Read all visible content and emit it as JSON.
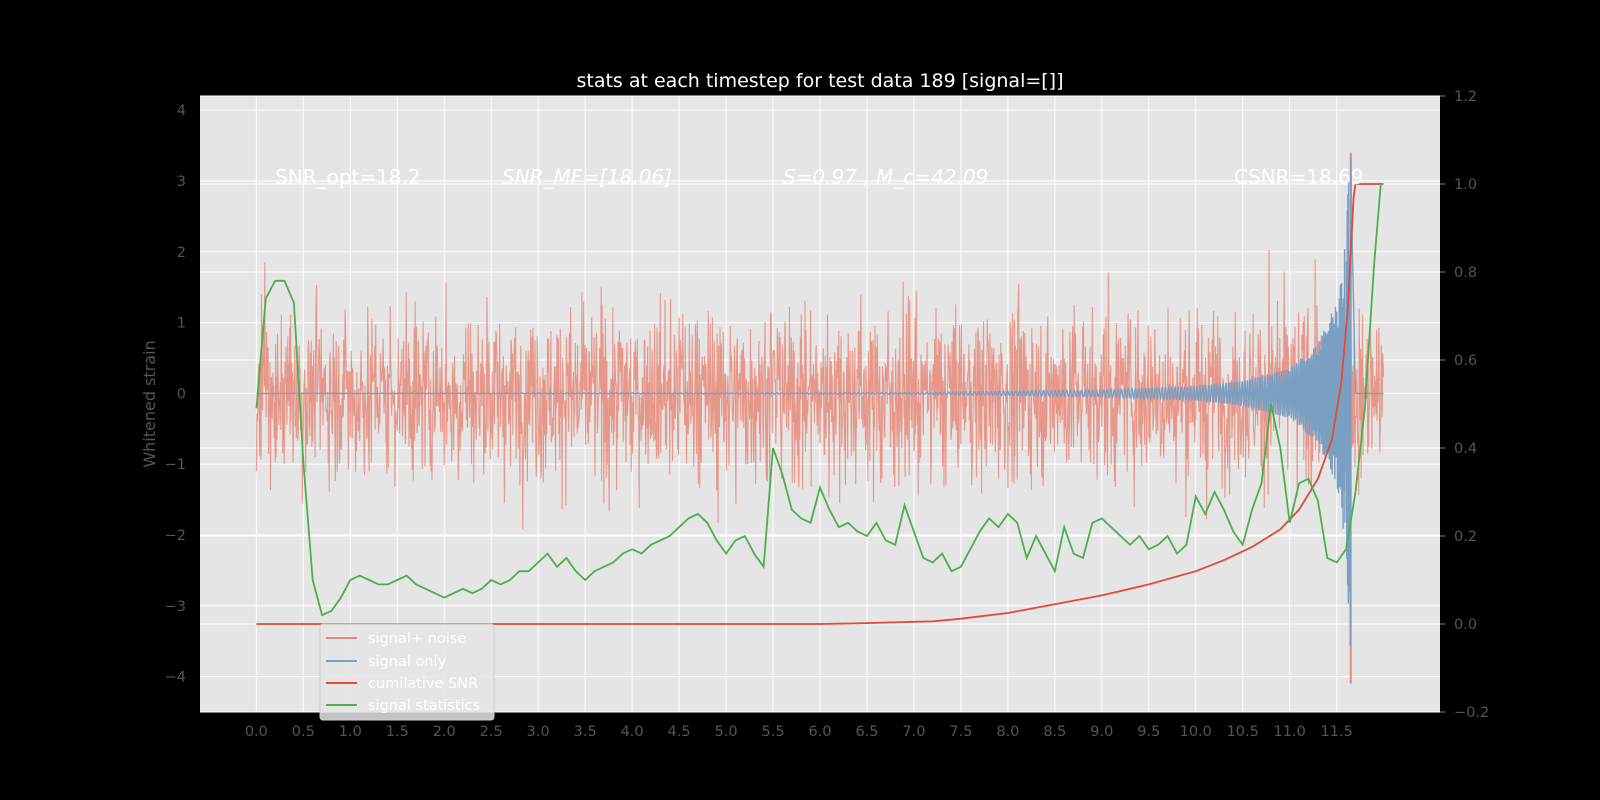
{
  "chart_data": {
    "type": "line",
    "title": "stats at each timestep for test data 189 [signal=[]]",
    "ylabel": "Whitened strain",
    "xlabel": "",
    "xlim": [
      -0.6,
      12.6
    ],
    "ylim_left": [
      -4.5,
      4.2
    ],
    "ylim_right": [
      -0.2,
      1.2
    ],
    "x_ticks": [
      "0.0",
      "0.5",
      "1.0",
      "1.5",
      "2.0",
      "2.5",
      "3.0",
      "3.5",
      "4.0",
      "4.5",
      "5.0",
      "5.5",
      "6.0",
      "6.5",
      "7.0",
      "7.5",
      "8.0",
      "8.5",
      "9.0",
      "9.5",
      "10.0",
      "10.5",
      "11.0",
      "11.5"
    ],
    "y_ticks_left": [
      "4",
      "3",
      "2",
      "1",
      "0",
      "−1",
      "−2",
      "−3",
      "−4"
    ],
    "y_ticks_right": [
      "1.2",
      "1.0",
      "0.8",
      "0.6",
      "0.4",
      "0.2",
      "0.0",
      "−0.2"
    ],
    "grid": true,
    "legend_position": "lower-left",
    "annotations": [
      "SNR_opt=18.2",
      "SNR_MF=[18.06]",
      "S=0.97 , M_c=42.09",
      "CSNR=18.69"
    ],
    "series": [
      {
        "name": "signal+ noise",
        "color": "#E8897A",
        "axis": "left",
        "description_range": [
          -2.5,
          2.5
        ],
        "x_range": [
          0.0,
          12.0
        ],
        "spike_x": 11.65,
        "spike_ymin": -4.1,
        "spike_ymax": 3.4
      },
      {
        "name": "signal only",
        "color": "#7B9FC2",
        "axis": "left",
        "x_range": [
          0.0,
          12.0
        ],
        "envelope": [
          [
            0,
            0.0
          ],
          [
            7,
            0.01
          ],
          [
            8,
            0.03
          ],
          [
            9,
            0.05
          ],
          [
            10,
            0.1
          ],
          [
            10.5,
            0.18
          ],
          [
            11,
            0.35
          ],
          [
            11.3,
            0.7
          ],
          [
            11.5,
            1.3
          ],
          [
            11.6,
            2.2
          ],
          [
            11.65,
            3.8
          ],
          [
            11.7,
            0.0
          ]
        ]
      },
      {
        "name": "cumilative SNR",
        "color": "#E24A33",
        "axis": "right",
        "x": [
          0.0,
          6.0,
          6.5,
          7.0,
          7.2,
          7.5,
          8.0,
          8.5,
          9.0,
          9.5,
          10.0,
          10.3,
          10.6,
          10.9,
          11.1,
          11.3,
          11.45,
          11.55,
          11.62,
          11.65,
          11.68,
          11.7,
          12.0
        ],
        "values": [
          0.0,
          0.0,
          0.002,
          0.005,
          0.006,
          0.012,
          0.025,
          0.045,
          0.065,
          0.09,
          0.12,
          0.145,
          0.175,
          0.215,
          0.26,
          0.33,
          0.42,
          0.55,
          0.72,
          0.85,
          0.97,
          1.0,
          1.0
        ]
      },
      {
        "name": "signal statistics",
        "color": "#4DAF4A",
        "axis": "right",
        "x": [
          0.0,
          0.1,
          0.2,
          0.3,
          0.4,
          0.5,
          0.6,
          0.7,
          0.8,
          0.9,
          1.0,
          1.1,
          1.2,
          1.3,
          1.4,
          1.5,
          1.6,
          1.7,
          1.8,
          1.9,
          2.0,
          2.1,
          2.2,
          2.3,
          2.4,
          2.5,
          2.6,
          2.7,
          2.8,
          2.9,
          3.0,
          3.1,
          3.2,
          3.3,
          3.4,
          3.5,
          3.6,
          3.7,
          3.8,
          3.9,
          4.0,
          4.1,
          4.2,
          4.3,
          4.4,
          4.5,
          4.6,
          4.7,
          4.8,
          4.9,
          5.0,
          5.1,
          5.2,
          5.3,
          5.4,
          5.5,
          5.6,
          5.7,
          5.8,
          5.9,
          6.0,
          6.1,
          6.2,
          6.3,
          6.4,
          6.5,
          6.6,
          6.7,
          6.8,
          6.9,
          7.0,
          7.1,
          7.2,
          7.3,
          7.4,
          7.5,
          7.6,
          7.7,
          7.8,
          7.9,
          8.0,
          8.1,
          8.2,
          8.3,
          8.4,
          8.5,
          8.6,
          8.7,
          8.8,
          8.9,
          9.0,
          9.1,
          9.2,
          9.3,
          9.4,
          9.5,
          9.6,
          9.7,
          9.8,
          9.9,
          10.0,
          10.1,
          10.2,
          10.3,
          10.4,
          10.5,
          10.6,
          10.7,
          10.8,
          10.9,
          11.0,
          11.1,
          11.2,
          11.3,
          11.4,
          11.5,
          11.6,
          11.7,
          11.8,
          11.9,
          12.0
        ],
        "values": [
          0.49,
          0.74,
          0.78,
          0.78,
          0.73,
          0.37,
          0.1,
          0.02,
          0.03,
          0.06,
          0.1,
          0.11,
          0.1,
          0.09,
          0.09,
          0.1,
          0.11,
          0.09,
          0.08,
          0.07,
          0.06,
          0.07,
          0.08,
          0.07,
          0.08,
          0.1,
          0.09,
          0.1,
          0.12,
          0.12,
          0.14,
          0.16,
          0.13,
          0.15,
          0.12,
          0.1,
          0.12,
          0.13,
          0.14,
          0.16,
          0.17,
          0.16,
          0.18,
          0.19,
          0.2,
          0.22,
          0.24,
          0.25,
          0.23,
          0.19,
          0.16,
          0.19,
          0.2,
          0.16,
          0.13,
          0.4,
          0.34,
          0.26,
          0.24,
          0.23,
          0.31,
          0.26,
          0.22,
          0.23,
          0.21,
          0.2,
          0.23,
          0.19,
          0.18,
          0.27,
          0.21,
          0.15,
          0.14,
          0.16,
          0.12,
          0.13,
          0.17,
          0.21,
          0.24,
          0.22,
          0.25,
          0.23,
          0.15,
          0.2,
          0.16,
          0.12,
          0.22,
          0.16,
          0.15,
          0.23,
          0.24,
          0.22,
          0.2,
          0.18,
          0.2,
          0.17,
          0.18,
          0.2,
          0.16,
          0.18,
          0.29,
          0.25,
          0.3,
          0.26,
          0.21,
          0.18,
          0.26,
          0.32,
          0.5,
          0.4,
          0.23,
          0.32,
          0.33,
          0.28,
          0.15,
          0.14,
          0.17,
          0.3,
          0.49,
          0.82,
          1.0
        ],
        "x_end": 11.97
      }
    ]
  }
}
